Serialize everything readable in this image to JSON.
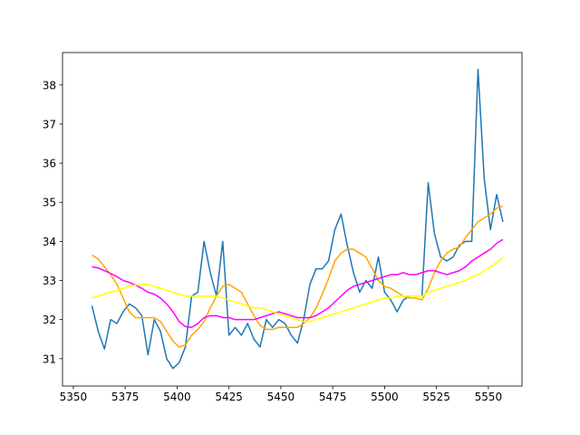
{
  "chart_data": {
    "type": "line",
    "x": [
      5359,
      5362,
      5365,
      5368,
      5371,
      5374,
      5377,
      5380,
      5383,
      5386,
      5389,
      5392,
      5395,
      5398,
      5401,
      5404,
      5407,
      5410,
      5413,
      5416,
      5419,
      5422,
      5425,
      5428,
      5431,
      5434,
      5437,
      5440,
      5443,
      5446,
      5449,
      5452,
      5455,
      5458,
      5461,
      5464,
      5467,
      5470,
      5473,
      5476,
      5479,
      5482,
      5485,
      5488,
      5491,
      5494,
      5497,
      5500,
      5503,
      5506,
      5509,
      5512,
      5515,
      5518,
      5521,
      5524,
      5527,
      5530,
      5533,
      5536,
      5539,
      5542,
      5545,
      5548,
      5551,
      5554,
      5557
    ],
    "series": [
      {
        "color": "#1f77b4",
        "values": [
          32.35,
          31.7,
          31.25,
          32.0,
          31.9,
          32.2,
          32.4,
          32.3,
          32.1,
          31.1,
          32.0,
          31.7,
          31.0,
          30.75,
          30.9,
          31.3,
          32.6,
          32.7,
          34.0,
          33.2,
          32.6,
          34.0,
          31.6,
          31.8,
          31.6,
          31.9,
          31.5,
          31.3,
          32.0,
          31.8,
          32.0,
          31.9,
          31.6,
          31.4,
          32.0,
          32.9,
          33.3,
          33.3,
          33.5,
          34.3,
          34.7,
          33.9,
          33.2,
          32.7,
          33.0,
          32.8,
          33.6,
          32.7,
          32.5,
          32.2,
          32.5,
          32.6,
          32.6,
          32.6,
          35.5,
          34.2,
          33.6,
          33.5,
          33.6,
          33.9,
          34.0,
          34.0,
          38.4,
          35.6,
          34.3,
          35.2,
          34.5
        ]
      },
      {
        "color": "#ffa500",
        "values": [
          33.65,
          33.55,
          33.35,
          33.15,
          32.9,
          32.55,
          32.2,
          32.05,
          32.05,
          32.05,
          32.05,
          31.95,
          31.7,
          31.45,
          31.3,
          31.35,
          31.6,
          31.75,
          31.95,
          32.3,
          32.6,
          32.85,
          32.9,
          32.8,
          32.7,
          32.4,
          32.1,
          31.85,
          31.75,
          31.75,
          31.8,
          31.8,
          31.8,
          31.8,
          31.9,
          32.05,
          32.3,
          32.65,
          33.05,
          33.5,
          33.7,
          33.8,
          33.8,
          33.7,
          33.6,
          33.3,
          33.0,
          32.85,
          32.8,
          32.7,
          32.6,
          32.55,
          32.55,
          32.5,
          32.8,
          33.2,
          33.5,
          33.7,
          33.8,
          33.85,
          34.1,
          34.3,
          34.5,
          34.6,
          34.7,
          34.85,
          34.9
        ]
      },
      {
        "color": "#ff00ff",
        "values": [
          33.35,
          33.32,
          33.25,
          33.18,
          33.1,
          33.0,
          32.95,
          32.88,
          32.8,
          32.7,
          32.65,
          32.55,
          32.4,
          32.2,
          31.95,
          31.82,
          31.8,
          31.9,
          32.05,
          32.1,
          32.1,
          32.05,
          32.05,
          32.0,
          32.0,
          32.0,
          32.0,
          32.05,
          32.1,
          32.15,
          32.2,
          32.15,
          32.1,
          32.05,
          32.05,
          32.05,
          32.1,
          32.2,
          32.3,
          32.45,
          32.6,
          32.75,
          32.85,
          32.9,
          32.95,
          33.0,
          33.05,
          33.1,
          33.15,
          33.15,
          33.2,
          33.15,
          33.15,
          33.2,
          33.25,
          33.25,
          33.2,
          33.15,
          33.2,
          33.25,
          33.35,
          33.5,
          33.6,
          33.7,
          33.8,
          33.95,
          34.05
        ]
      },
      {
        "color": "#ffff00",
        "values": [
          32.55,
          32.6,
          32.65,
          32.7,
          32.75,
          32.8,
          32.85,
          32.88,
          32.9,
          32.9,
          32.85,
          32.8,
          32.75,
          32.7,
          32.65,
          32.6,
          32.6,
          32.6,
          32.6,
          32.6,
          32.6,
          32.55,
          32.5,
          32.45,
          32.4,
          32.35,
          32.3,
          32.3,
          32.25,
          32.2,
          32.15,
          32.1,
          32.05,
          32.0,
          31.95,
          31.95,
          32.0,
          32.05,
          32.1,
          32.15,
          32.2,
          32.25,
          32.3,
          32.35,
          32.4,
          32.45,
          32.5,
          32.55,
          32.55,
          32.6,
          32.6,
          32.6,
          32.6,
          32.6,
          32.7,
          32.75,
          32.8,
          32.85,
          32.9,
          32.95,
          33.0,
          33.1,
          33.15,
          33.25,
          33.35,
          33.45,
          33.6
        ]
      }
    ],
    "xlim": [
      5344.8,
      5566.2
    ],
    "xticks": [
      5350,
      5375,
      5400,
      5425,
      5450,
      5475,
      5500,
      5525,
      5550
    ],
    "ylim": [
      30.3,
      38.83
    ],
    "yticks": [
      31,
      32,
      33,
      34,
      35,
      36,
      37,
      38
    ]
  }
}
